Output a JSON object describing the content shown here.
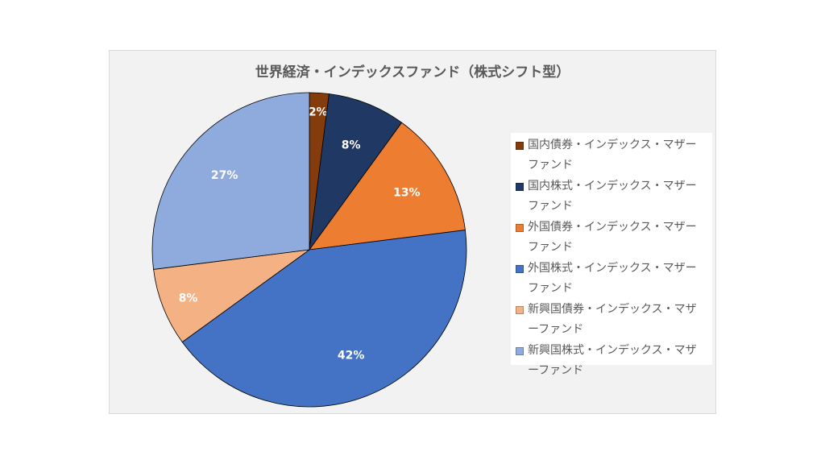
{
  "chart_data": {
    "type": "pie",
    "title": "世界経済・インデックスファンド（株式シフト型）",
    "categories": [
      "国内債券・インデックス・マザーファンド",
      "国内株式・インデックス・マザーファンド",
      "外国債券・インデックス・マザーファンド",
      "外国株式・インデックス・マザーファンド",
      "新興国債券・インデックス・マザーファンド",
      "新興国株式・インデックス・マザーファンド"
    ],
    "values": [
      2,
      8,
      13,
      42,
      8,
      27
    ],
    "data_labels": [
      "2%",
      "8%",
      "13%",
      "42%",
      "8%",
      "27%"
    ],
    "colors": [
      "#843c0c",
      "#203864",
      "#ed7d31",
      "#4472c4",
      "#f4b183",
      "#8faadc"
    ],
    "legend_position": "right"
  }
}
